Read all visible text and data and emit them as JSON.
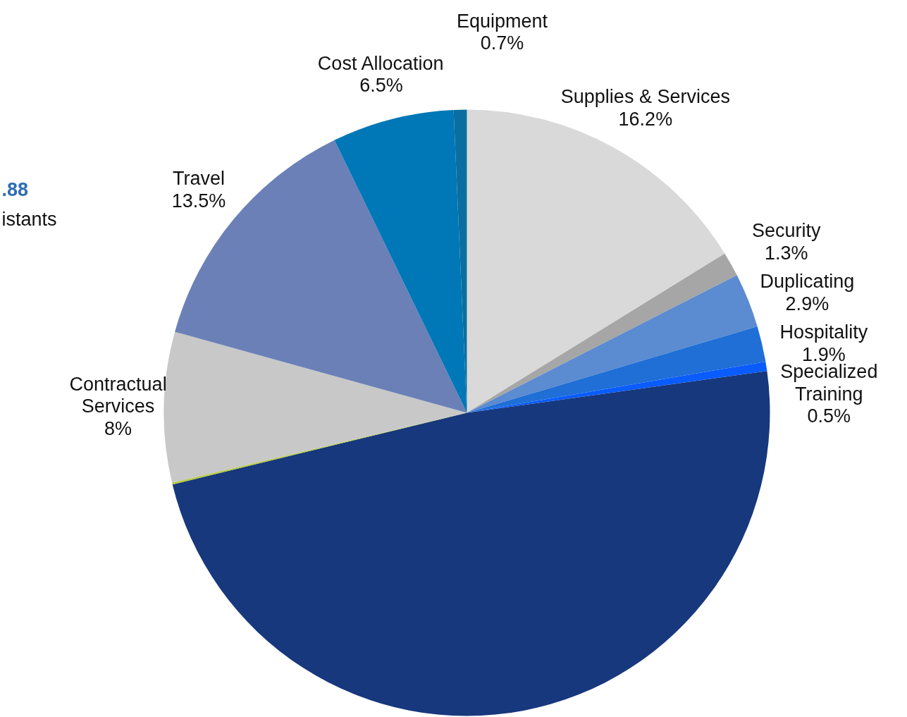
{
  "chart_data": {
    "type": "pie",
    "categories": [
      "Supplies & Services",
      "Security",
      "Duplicating",
      "Hospitality",
      "Specialized Training",
      null,
      null,
      "Contractual Services",
      "Travel",
      "Cost Allocation",
      "Equipment"
    ],
    "values": [
      16.2,
      1.3,
      2.9,
      1.9,
      0.5,
      48.4,
      0.1,
      8,
      13.5,
      6.5,
      0.7
    ],
    "value_labels": [
      "16.2%",
      "1.3%",
      "2.9%",
      "1.9%",
      "0.5%",
      null,
      null,
      "8%",
      "13.5%",
      "6.5%",
      "0.7%"
    ],
    "colors": [
      "#d9d9d9",
      "#a6a6a6",
      "#5b8bd0",
      "#1f6fd6",
      "#0a5cff",
      "#17387d",
      "#b5cc3e",
      "#c8c8c8",
      "#6a80b7",
      "#0077b6",
      "#0a6fa0"
    ],
    "annotations": [
      ".88",
      "istants"
    ],
    "legend": false
  }
}
